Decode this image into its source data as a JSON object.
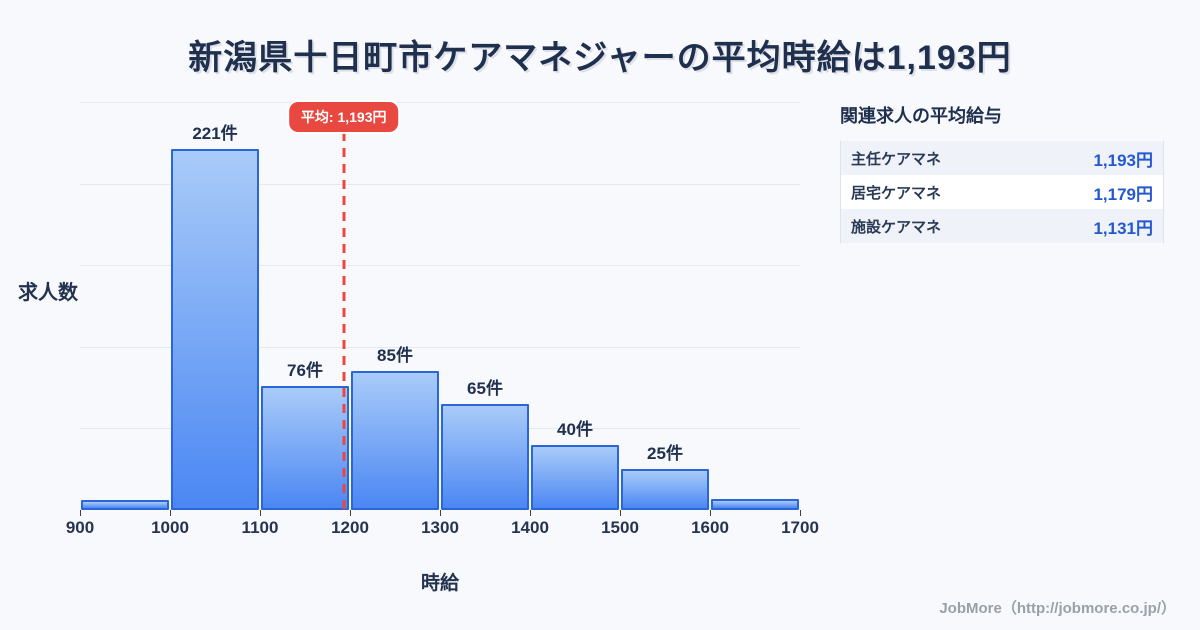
{
  "title": "新潟県十日町市ケアマネジャーの平均時給は1,193円",
  "chart_data": {
    "type": "bar",
    "title": "新潟県十日町市ケアマネジャーの平均時給は1,193円",
    "xlabel": "時給",
    "ylabel": "求人数",
    "bin_edges": [
      900,
      1000,
      1100,
      1200,
      1300,
      1400,
      1500,
      1600,
      1700
    ],
    "values": [
      6,
      221,
      76,
      85,
      65,
      40,
      25,
      7
    ],
    "bar_labels": [
      "",
      "221件",
      "76件",
      "85件",
      "65件",
      "40件",
      "25件",
      ""
    ],
    "average": 1193,
    "average_label": "平均: 1,193円",
    "ylim": [
      0,
      250
    ],
    "grid_step": 50,
    "grid": true,
    "legend": false,
    "unit_suffix": "件",
    "colors": {
      "bar_top": "#a9cbf8",
      "bar_bottom": "#4b87f3",
      "bar_border": "#2b66d9",
      "average_red": "#e8483f",
      "grid": "#e4e8ef",
      "text_navy": "#1f2f4e",
      "value_blue": "#2458d0",
      "background": "#f8f9fc"
    }
  },
  "side_panel": {
    "title": "関連求人の平均給与",
    "rows": [
      {
        "label": "主任ケアマネ",
        "value": "1,193円"
      },
      {
        "label": "居宅ケアマネ",
        "value": "1,179円"
      },
      {
        "label": "施設ケアマネ",
        "value": "1,131円"
      }
    ]
  },
  "footer": {
    "credit": "JobMore（http://jobmore.co.jp/）"
  }
}
